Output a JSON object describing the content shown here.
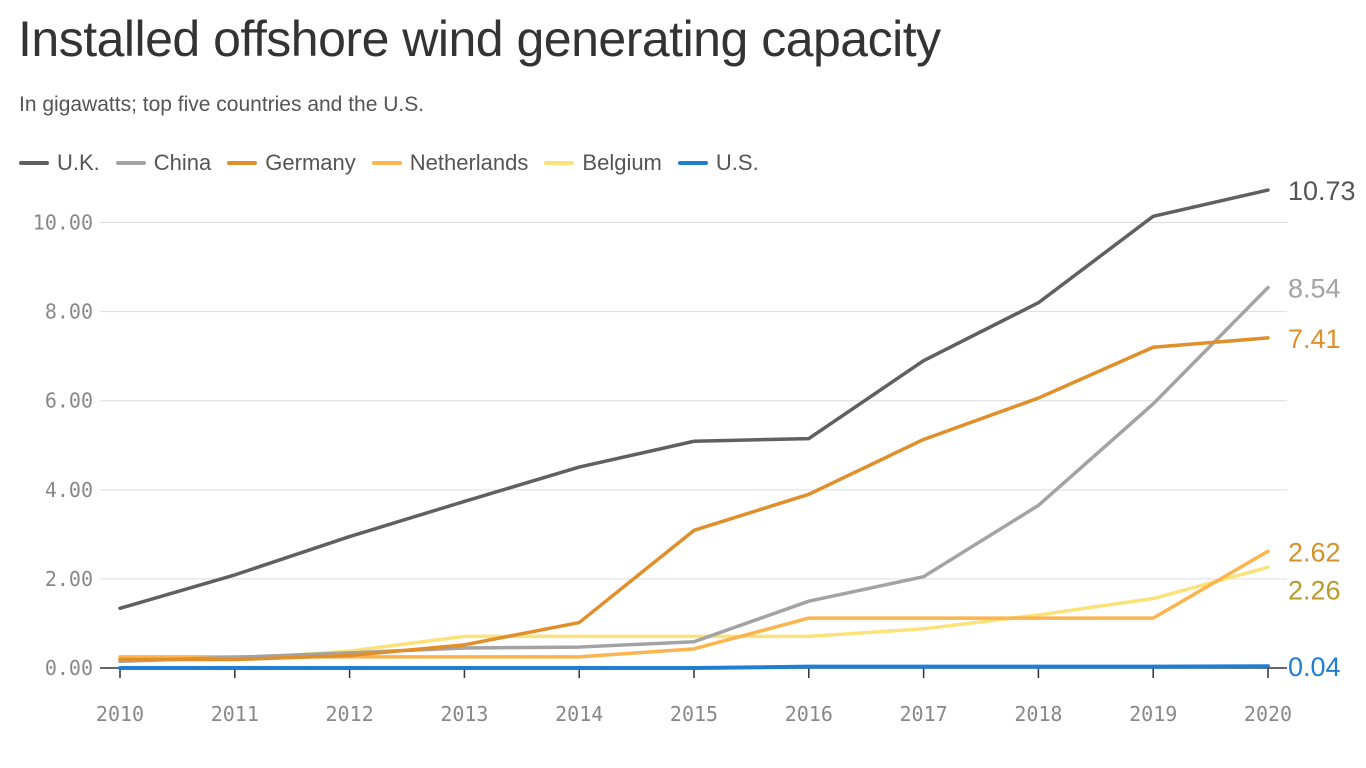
{
  "title": "Installed offshore wind generating capacity",
  "subtitle": "In gigawatts; top five countries and the U.S.",
  "legend": [
    {
      "name": "U.K.",
      "color": "#606060"
    },
    {
      "name": "China",
      "color": "#a3a3a3"
    },
    {
      "name": "Germany",
      "color": "#e08f2a"
    },
    {
      "name": "Netherlands",
      "color": "#fbb44e"
    },
    {
      "name": "Belgium",
      "color": "#fbe27a"
    },
    {
      "name": "U.S.",
      "color": "#1f7dd4"
    }
  ],
  "chart_data": {
    "type": "line",
    "title": "Installed offshore wind generating capacity",
    "subtitle": "In gigawatts; top five countries and the U.S.",
    "xlabel": "",
    "ylabel": "",
    "x": [
      "2010",
      "2011",
      "2012",
      "2013",
      "2014",
      "2015",
      "2016",
      "2017",
      "2018",
      "2019",
      "2020"
    ],
    "xlim": [
      2010,
      2020
    ],
    "ylim": [
      0,
      11
    ],
    "y_ticks": [
      "0.00",
      "2.00",
      "4.00",
      "6.00",
      "8.00",
      "10.00"
    ],
    "y_tick_values": [
      0,
      2,
      4,
      6,
      8,
      10
    ],
    "grid": "horizontal",
    "legend_position": "top-left",
    "series": [
      {
        "name": "Belgium",
        "color": "#fbe27a",
        "values": [
          0.2,
          0.2,
          0.38,
          0.71,
          0.71,
          0.71,
          0.71,
          0.88,
          1.19,
          1.56,
          2.26
        ],
        "end_label": "2.26",
        "end_label_color": "#b89a2a"
      },
      {
        "name": "Netherlands",
        "color": "#fbb44e",
        "values": [
          0.25,
          0.25,
          0.25,
          0.25,
          0.25,
          0.43,
          1.12,
          1.12,
          1.12,
          1.12,
          2.62
        ],
        "end_label": "2.62",
        "end_label_color": "#d6912a"
      },
      {
        "name": "U.S.",
        "color": "#1f7dd4",
        "values": [
          0,
          0,
          0,
          0,
          0,
          0,
          0.03,
          0.03,
          0.03,
          0.03,
          0.04
        ],
        "end_label": "0.04",
        "end_label_color": "#1f7dd4"
      },
      {
        "name": "China",
        "color": "#a3a3a3",
        "values": [
          0.15,
          0.24,
          0.34,
          0.45,
          0.47,
          0.59,
          1.5,
          2.05,
          3.65,
          5.93,
          8.54
        ],
        "end_label": "8.54",
        "end_label_color": "#a3a3a3"
      },
      {
        "name": "Germany",
        "color": "#e08f2a",
        "values": [
          0.19,
          0.19,
          0.28,
          0.52,
          1.02,
          3.09,
          3.9,
          5.13,
          6.06,
          7.2,
          7.41
        ],
        "end_label": "7.41",
        "end_label_color": "#e08f2a"
      },
      {
        "name": "U.K.",
        "color": "#606060",
        "values": [
          1.34,
          2.09,
          2.95,
          3.74,
          4.51,
          5.09,
          5.15,
          6.9,
          8.2,
          10.14,
          10.73
        ],
        "end_label": "10.73",
        "end_label_color": "#555555"
      }
    ]
  }
}
